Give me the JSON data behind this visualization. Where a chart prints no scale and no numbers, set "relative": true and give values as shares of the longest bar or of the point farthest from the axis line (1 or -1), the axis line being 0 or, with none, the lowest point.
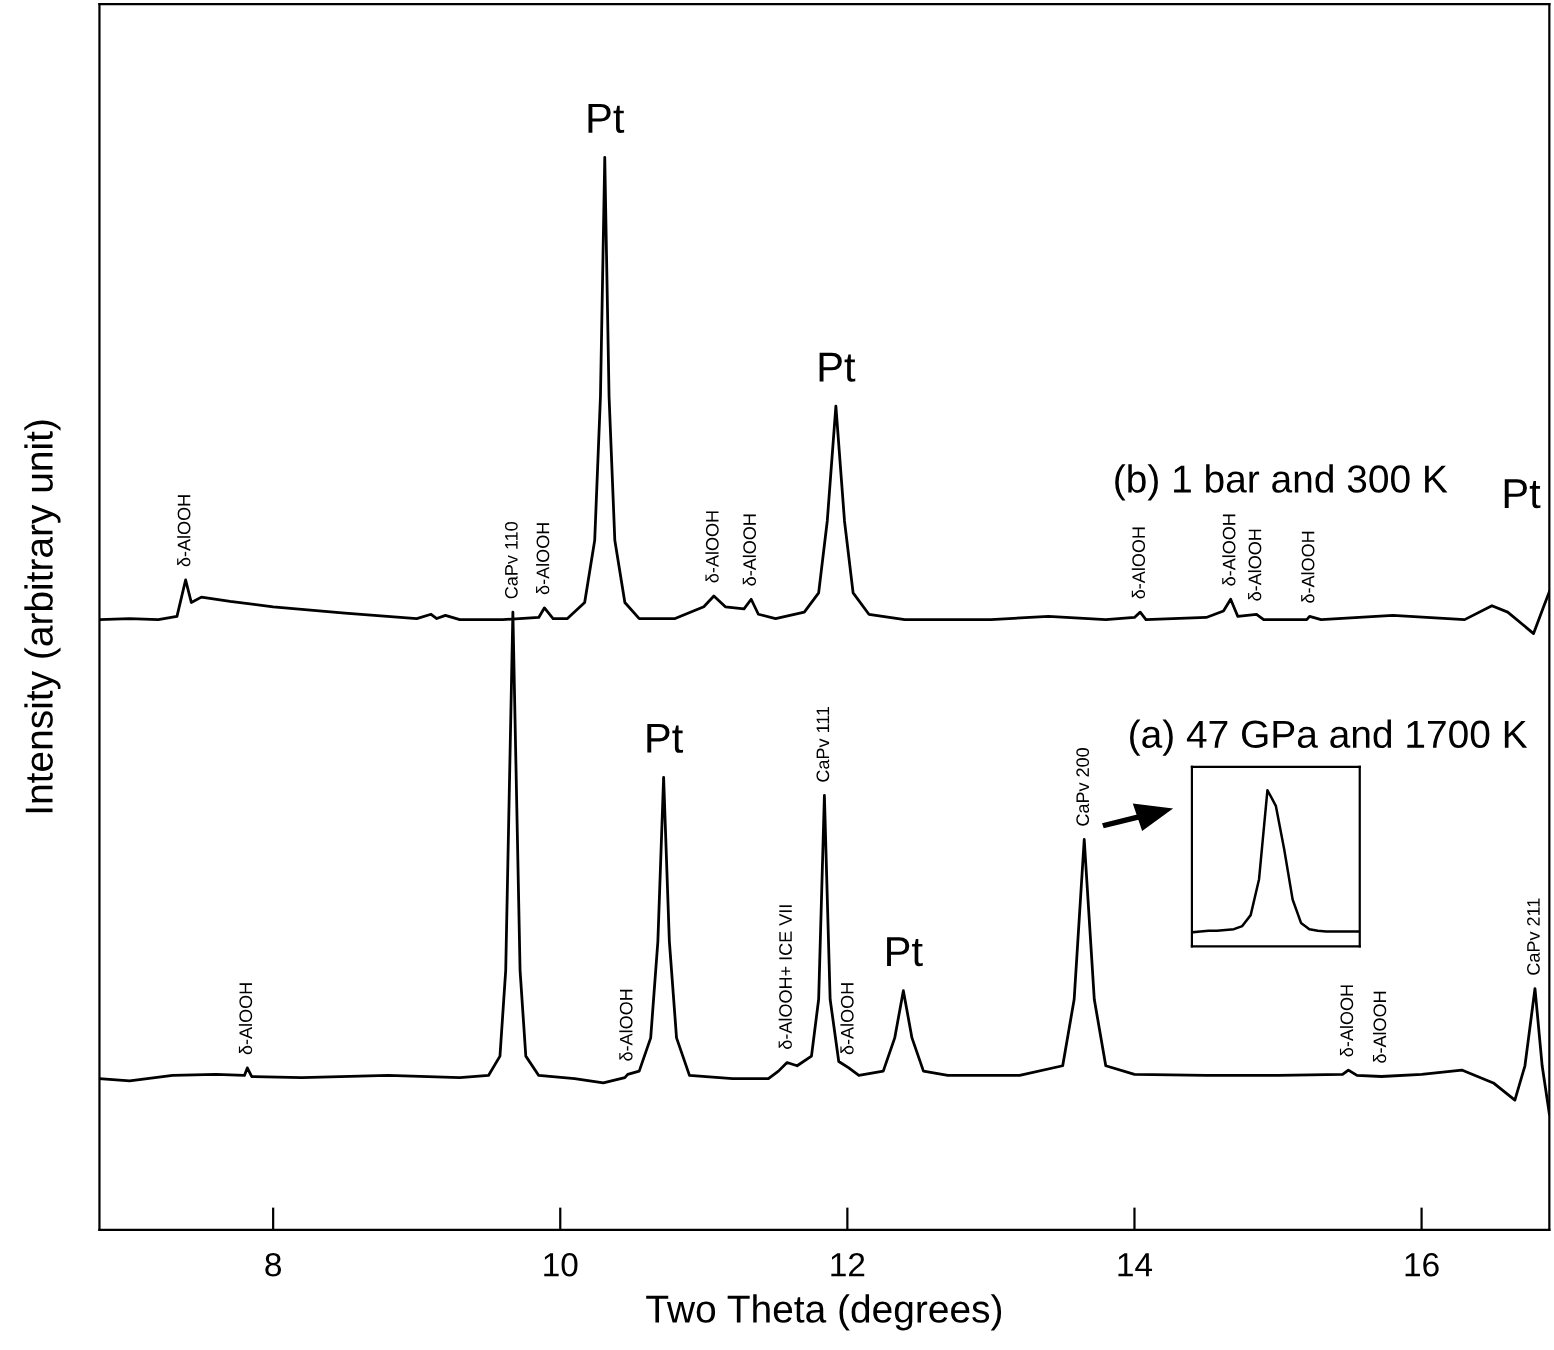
{
  "chart_data": [
    {
      "type": "line",
      "relative": true,
      "xlabel": "Two Theta (degrees)",
      "ylabel": "Intensity (arbitrary unit)",
      "xlim": [
        6.79,
        16.89
      ],
      "xticks": [
        8,
        10,
        12,
        14,
        16
      ],
      "tick_labels": "x",
      "grid": false,
      "legend": false,
      "series": [
        {
          "name": "(b) 1 bar and 300 K",
          "color": "#000000",
          "x": [
            6.79,
            7.0,
            7.2,
            7.33,
            7.39,
            7.43,
            7.5,
            7.7,
            8.0,
            8.5,
            9.0,
            9.1,
            9.14,
            9.2,
            9.3,
            9.6,
            9.85,
            9.89,
            9.95,
            10.05,
            10.17,
            10.24,
            10.28,
            10.31,
            10.34,
            10.38,
            10.45,
            10.55,
            10.8,
            11.0,
            11.07,
            11.15,
            11.28,
            11.33,
            11.38,
            11.5,
            11.7,
            11.8,
            11.86,
            11.92,
            11.98,
            12.04,
            12.15,
            12.4,
            13.0,
            13.4,
            13.8,
            14.0,
            14.04,
            14.08,
            14.5,
            14.62,
            14.67,
            14.72,
            14.85,
            14.9,
            15.2,
            15.22,
            15.3,
            15.8,
            16.3,
            16.49,
            16.6,
            16.78,
            16.85,
            16.89
          ],
          "values": [
            0.569,
            0.57,
            0.569,
            0.572,
            0.606,
            0.585,
            0.59,
            0.586,
            0.581,
            0.575,
            0.57,
            0.574,
            0.57,
            0.573,
            0.569,
            0.569,
            0.571,
            0.58,
            0.57,
            0.57,
            0.585,
            0.643,
            0.777,
            1.0,
            0.777,
            0.643,
            0.585,
            0.57,
            0.57,
            0.581,
            0.591,
            0.581,
            0.579,
            0.588,
            0.574,
            0.57,
            0.576,
            0.594,
            0.661,
            0.768,
            0.661,
            0.594,
            0.574,
            0.569,
            0.569,
            0.572,
            0.569,
            0.571,
            0.576,
            0.569,
            0.571,
            0.577,
            0.588,
            0.572,
            0.574,
            0.569,
            0.569,
            0.572,
            0.569,
            0.573,
            0.569,
            0.582,
            0.576,
            0.556,
            0.581,
            0.595
          ]
        },
        {
          "name": "(a) 47 GPa and 1700 K",
          "color": "#000000",
          "x": [
            6.79,
            7.0,
            7.3,
            7.6,
            7.8,
            7.82,
            7.85,
            8.2,
            8.8,
            9.3,
            9.5,
            9.58,
            9.62,
            9.67,
            9.72,
            9.76,
            9.85,
            10.1,
            10.3,
            10.45,
            10.47,
            10.55,
            10.63,
            10.68,
            10.72,
            10.76,
            10.81,
            10.9,
            11.2,
            11.45,
            11.52,
            11.58,
            11.65,
            11.75,
            11.8,
            11.84,
            11.88,
            11.94,
            12.01,
            12.08,
            12.25,
            12.33,
            12.39,
            12.45,
            12.53,
            12.7,
            13.2,
            13.5,
            13.58,
            13.65,
            13.72,
            13.8,
            14.0,
            14.5,
            15.0,
            15.45,
            15.49,
            15.55,
            15.72,
            16.0,
            16.28,
            16.5,
            16.65,
            16.72,
            16.79,
            16.84,
            16.89
          ],
          "values": [
            0.141,
            0.139,
            0.144,
            0.145,
            0.144,
            0.151,
            0.143,
            0.142,
            0.144,
            0.142,
            0.144,
            0.162,
            0.242,
            0.576,
            0.242,
            0.162,
            0.144,
            0.141,
            0.137,
            0.142,
            0.145,
            0.148,
            0.179,
            0.269,
            0.422,
            0.269,
            0.179,
            0.144,
            0.141,
            0.141,
            0.148,
            0.156,
            0.153,
            0.162,
            0.215,
            0.405,
            0.215,
            0.157,
            0.151,
            0.144,
            0.148,
            0.179,
            0.223,
            0.179,
            0.148,
            0.144,
            0.144,
            0.153,
            0.215,
            0.364,
            0.215,
            0.153,
            0.145,
            0.144,
            0.144,
            0.145,
            0.149,
            0.144,
            0.143,
            0.145,
            0.149,
            0.137,
            0.121,
            0.153,
            0.225,
            0.153,
            0.108
          ]
        }
      ],
      "annotations": [
        {
          "text": "Pt",
          "x": 10.31,
          "y": 1.0
        },
        {
          "text": "Pt",
          "x": 11.92,
          "y": 0.768
        },
        {
          "text": "Pt",
          "x": 16.89,
          "y": 0.595
        },
        {
          "text": "Pt",
          "x": 10.72,
          "y": 0.422
        },
        {
          "text": "Pt",
          "x": 12.39,
          "y": 0.223
        },
        {
          "text": "δ-AlOOH",
          "x": 7.39,
          "y": 0.606
        },
        {
          "text": "δ-AlOOH",
          "x": 9.89,
          "y": 0.58
        },
        {
          "text": "δ-AlOOH",
          "x": 11.07,
          "y": 0.591
        },
        {
          "text": "δ-AlOOH",
          "x": 11.33,
          "y": 0.588
        },
        {
          "text": "δ-AlOOH",
          "x": 14.04,
          "y": 0.576
        },
        {
          "text": "δ-AlOOH",
          "x": 14.67,
          "y": 0.588
        },
        {
          "text": "δ-AlOOH",
          "x": 14.85,
          "y": 0.574
        },
        {
          "text": "δ-AlOOH",
          "x": 15.22,
          "y": 0.572
        },
        {
          "text": "δ-AlOOH",
          "x": 7.82,
          "y": 0.151
        },
        {
          "text": "CaPv 110",
          "x": 9.67,
          "y": 0.576
        },
        {
          "text": "δ-AlOOH",
          "x": 10.47,
          "y": 0.145
        },
        {
          "text": "δ-AlOOH+ ICE VII",
          "x": 11.58,
          "y": 0.156
        },
        {
          "text": "CaPv 111",
          "x": 11.84,
          "y": 0.405
        },
        {
          "text": "δ-AlOOH",
          "x": 12.01,
          "y": 0.151
        },
        {
          "text": "CaPv 200",
          "x": 13.65,
          "y": 0.364
        },
        {
          "text": "δ-AlOOH",
          "x": 15.49,
          "y": 0.149
        },
        {
          "text": "δ-AlOOH",
          "x": 15.72,
          "y": 0.143
        },
        {
          "text": "CaPv 211",
          "x": 16.79,
          "y": 0.225
        }
      ]
    },
    {
      "type": "line",
      "relative": true,
      "tick_labels": false,
      "legend": false,
      "categories": [
        null,
        null,
        null,
        null,
        null,
        null,
        null,
        null,
        null,
        null,
        null,
        null,
        null,
        null,
        null,
        null,
        null,
        null,
        null,
        null,
        null
      ],
      "series": [
        {
          "color": "#000000",
          "values": [
            0.09,
            0.095,
            0.1,
            0.1,
            0.105,
            0.11,
            0.13,
            0.2,
            0.43,
            1.0,
            0.9,
            0.62,
            0.3,
            0.15,
            0.11,
            0.1,
            0.095,
            0.095,
            0.095,
            0.095,
            0.095
          ]
        }
      ]
    }
  ]
}
